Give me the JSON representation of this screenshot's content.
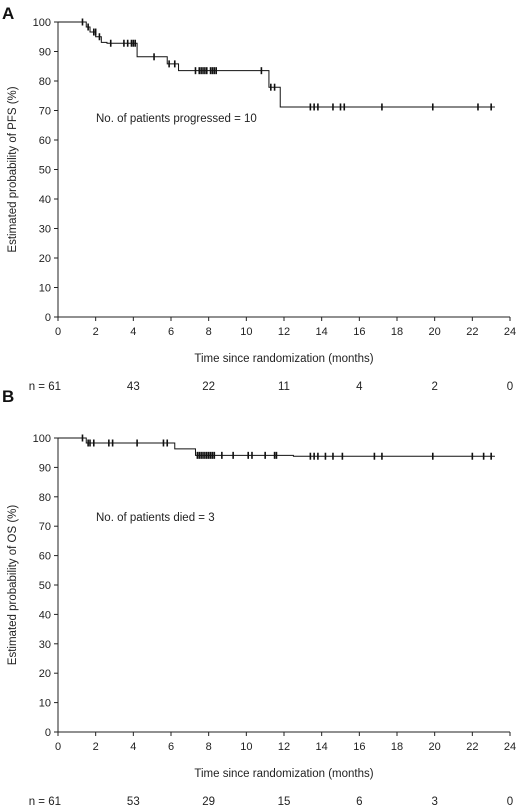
{
  "chart_data": [
    {
      "type": "line",
      "panel_label": "A",
      "xlabel": "Time since randomization (months)",
      "ylabel": "Estimated probability of PFS (%)",
      "xlim": [
        0,
        24
      ],
      "ylim": [
        0,
        100
      ],
      "xticks": [
        0,
        2,
        4,
        6,
        8,
        10,
        12,
        14,
        16,
        18,
        20,
        22,
        24
      ],
      "yticks": [
        0,
        10,
        20,
        30,
        40,
        50,
        60,
        70,
        80,
        90,
        100
      ],
      "annotation": "No. of patients progressed = 10",
      "step_curve": {
        "x": [
          0,
          1.5,
          1.7,
          2.0,
          2.3,
          2.6,
          4.2,
          5.8,
          6.4,
          11.2,
          11.8,
          23.2
        ],
        "y": [
          100,
          98.3,
          96.6,
          95.0,
          93.1,
          92.8,
          88.2,
          85.8,
          83.5,
          77.9,
          71.2,
          71.2
        ]
      },
      "censor_marks": {
        "x": [
          1.3,
          1.6,
          1.9,
          2.0,
          2.2,
          2.8,
          3.5,
          3.7,
          3.9,
          4.0,
          4.1,
          5.1,
          5.9,
          6.2,
          7.3,
          7.5,
          7.6,
          7.7,
          7.8,
          7.9,
          8.1,
          8.2,
          8.3,
          8.4,
          10.8,
          11.3,
          11.5,
          13.4,
          13.6,
          13.8,
          14.6,
          15.0,
          15.2,
          17.2,
          19.9,
          22.3,
          23.0
        ],
        "y": [
          100,
          98.3,
          96.6,
          96.6,
          95.0,
          92.8,
          92.8,
          92.8,
          92.8,
          92.8,
          92.8,
          88.2,
          85.8,
          85.8,
          83.5,
          83.5,
          83.5,
          83.5,
          83.5,
          83.5,
          83.5,
          83.5,
          83.5,
          83.5,
          83.5,
          77.9,
          77.9,
          71.2,
          71.2,
          71.2,
          71.2,
          71.2,
          71.2,
          71.2,
          71.2,
          71.2,
          71.2
        ]
      },
      "at_risk": {
        "prefix": "n = ",
        "x": [
          0,
          4,
          8,
          12,
          16,
          20,
          24
        ],
        "values": [
          "61",
          "43",
          "22",
          "11",
          "4",
          "2",
          "0"
        ]
      }
    },
    {
      "type": "line",
      "panel_label": "B",
      "xlabel": "Time since randomization (months)",
      "ylabel": "Estimated probability of OS (%)",
      "xlim": [
        0,
        24
      ],
      "ylim": [
        0,
        100
      ],
      "xticks": [
        0,
        2,
        4,
        6,
        8,
        10,
        12,
        14,
        16,
        18,
        20,
        22,
        24
      ],
      "yticks": [
        0,
        10,
        20,
        30,
        40,
        50,
        60,
        70,
        80,
        90,
        100
      ],
      "annotation": "No. of patients died = 3",
      "step_curve": {
        "x": [
          0,
          1.5,
          6.2,
          7.3,
          12.5,
          23.2
        ],
        "y": [
          100,
          98.3,
          96.3,
          94.1,
          93.8,
          93.8
        ]
      },
      "censor_marks": {
        "x": [
          1.3,
          1.6,
          1.7,
          1.9,
          2.7,
          2.9,
          4.2,
          5.6,
          5.8,
          7.4,
          7.5,
          7.6,
          7.7,
          7.8,
          7.9,
          8.0,
          8.1,
          8.2,
          8.3,
          8.7,
          9.3,
          10.1,
          10.3,
          11.0,
          11.5,
          11.6,
          13.4,
          13.6,
          13.8,
          14.2,
          14.6,
          15.1,
          16.8,
          17.2,
          19.9,
          22.0,
          22.6,
          23.0
        ],
        "y": [
          100,
          98.3,
          98.3,
          98.3,
          98.3,
          98.3,
          98.3,
          98.3,
          98.3,
          94.1,
          94.1,
          94.1,
          94.1,
          94.1,
          94.1,
          94.1,
          94.1,
          94.1,
          94.1,
          94.1,
          94.1,
          94.1,
          94.1,
          94.1,
          94.1,
          94.1,
          93.8,
          93.8,
          93.8,
          93.8,
          93.8,
          93.8,
          93.8,
          93.8,
          93.8,
          93.8,
          93.8,
          93.8
        ]
      },
      "at_risk": {
        "prefix": "n = ",
        "x": [
          0,
          4,
          8,
          12,
          16,
          20,
          24
        ],
        "values": [
          "61",
          "53",
          "29",
          "15",
          "6",
          "3",
          "0"
        ]
      }
    }
  ]
}
